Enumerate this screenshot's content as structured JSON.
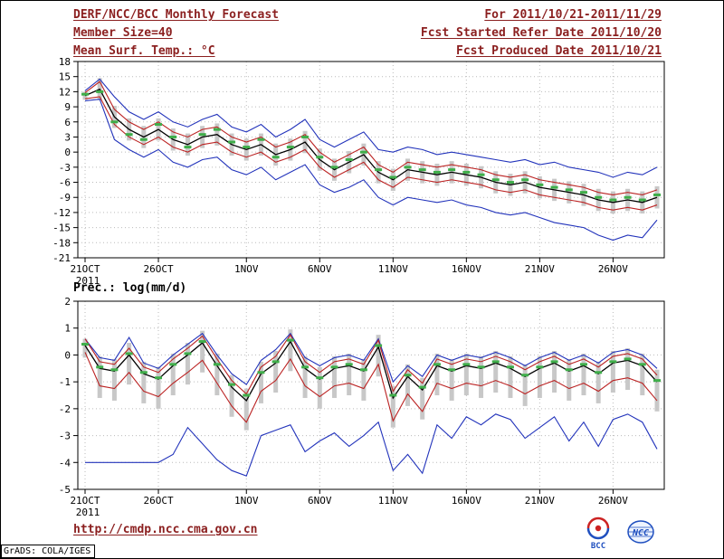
{
  "header": {
    "title": "DERF/NCC/BCC Monthly Forecast",
    "member_size": "Member Size=40",
    "for_range": "For 2011/10/21-2011/11/29",
    "refer_date": "Fcst Started Refer Date 2011/10/20",
    "produced_date": "Fcst Produced Date 2011/10/21"
  },
  "footer": {
    "url": "http://cmdp.ncc.cma.gov.cn",
    "grads_credit": "GrADS: COLA/IGES",
    "logos": [
      {
        "name": "bcc",
        "label": "BCC"
      },
      {
        "name": "ncc",
        "label": "NCC"
      }
    ]
  },
  "colors": {
    "maroon": "#8b1f1f",
    "blue": "#2233bb",
    "red": "#bb2222",
    "black": "#000000",
    "green": "#3fae4a",
    "gray": "#c8c8c8",
    "grid": "#bbbbbb",
    "logo_blue": "#1f4fbf",
    "logo_red": "#cc2222"
  },
  "chart_data": [
    {
      "type": "line",
      "title": "Mean Surf. Temp.: °C",
      "n": 40,
      "ylim": [
        -21,
        18
      ],
      "yticks": [
        18,
        15,
        12,
        9,
        6,
        3,
        0,
        -3,
        -6,
        -9,
        -12,
        -15,
        -18,
        -21
      ],
      "xticks": [
        {
          "i": 0,
          "label": "21OCT"
        },
        {
          "i": 5,
          "label": "26OCT"
        },
        {
          "i": 11,
          "label": "1NOV"
        },
        {
          "i": 16,
          "label": "6NOV"
        },
        {
          "i": 21,
          "label": "11NOV"
        },
        {
          "i": 26,
          "label": "16NOV"
        },
        {
          "i": 31,
          "label": "21NOV"
        },
        {
          "i": 36,
          "label": "26NOV"
        }
      ],
      "x_year_label": "2011",
      "grid": true,
      "bars": {
        "color": "gray",
        "hi": [
          12,
          14.7,
          9.2,
          6.7,
          5.2,
          6.7,
          4.7,
          3.7,
          5.2,
          5.7,
          3.7,
          2.7,
          3.7,
          1.7,
          2.7,
          4.2,
          0.7,
          -1.3,
          0.2,
          1.7,
          -1.8,
          -3.3,
          -1.3,
          -1.8,
          -2.3,
          -1.8,
          -2.3,
          -2.8,
          -3.8,
          -4.3,
          -3.8,
          -4.8,
          -5.3,
          -5.8,
          -6.3,
          -7.3,
          -7.8,
          -7.3,
          -7.8,
          -6.8
        ],
        "lo": [
          10.4,
          10.3,
          4.8,
          2.3,
          0.8,
          2.3,
          0.3,
          -0.7,
          0.8,
          1.3,
          -0.7,
          -1.7,
          -0.7,
          -2.7,
          -1.7,
          -0.2,
          -3.7,
          -5.7,
          -4.2,
          -2.7,
          -6.2,
          -7.7,
          -5.7,
          -6.2,
          -6.7,
          -6.2,
          -6.7,
          -7.2,
          -8.2,
          -8.7,
          -8.2,
          -9.2,
          -9.7,
          -10.2,
          -10.7,
          -11.7,
          -12.2,
          -11.7,
          -12.2,
          -11.2
        ]
      },
      "series": [
        {
          "name": "upper-envelope",
          "type": "line",
          "color": "blue",
          "values": [
            12.2,
            14.5,
            11,
            8,
            6.5,
            8,
            6,
            5,
            6.5,
            7.5,
            5,
            4,
            5.5,
            3,
            4.5,
            6.5,
            2.5,
            1,
            2.5,
            4,
            0.5,
            0,
            1,
            0.5,
            -0.5,
            0,
            -0.5,
            -1,
            -1.5,
            -2,
            -1.5,
            -2.5,
            -2,
            -3,
            -3.5,
            -4,
            -5,
            -4,
            -4.5,
            -3
          ]
        },
        {
          "name": "lower-envelope",
          "type": "line",
          "color": "blue",
          "values": [
            10.2,
            10.5,
            2.5,
            0.5,
            -1,
            0.5,
            -2,
            -3,
            -1.5,
            -1,
            -3.5,
            -4.5,
            -3,
            -5.5,
            -4,
            -2.5,
            -6.5,
            -8,
            -7,
            -5.5,
            -9,
            -10.5,
            -9,
            -9.5,
            -10,
            -9.5,
            -10.5,
            -11,
            -12,
            -12.5,
            -12,
            -13,
            -14,
            -14.5,
            -15,
            -16.5,
            -17.5,
            -16.5,
            -17,
            -13.5
          ]
        },
        {
          "name": "upper-band",
          "type": "line",
          "color": "red",
          "values": [
            11.8,
            14,
            8.5,
            6,
            4.5,
            6,
            4,
            3,
            4.5,
            5,
            3,
            2,
            3,
            1,
            2,
            3.5,
            0,
            -2,
            -0.5,
            1,
            -2.5,
            -4,
            -2,
            -2.5,
            -3,
            -2.5,
            -3,
            -3.5,
            -4.5,
            -5,
            -4.5,
            -5.5,
            -6,
            -6.5,
            -7,
            -8,
            -8.5,
            -8,
            -8.5,
            -7.5
          ]
        },
        {
          "name": "lower-band",
          "type": "line",
          "color": "red",
          "values": [
            10.6,
            11,
            5.5,
            3,
            1.5,
            3,
            1,
            0,
            1.5,
            2,
            0,
            -1,
            0,
            -2,
            -1,
            0.5,
            -3,
            -5,
            -3.5,
            -2,
            -5.5,
            -7,
            -5,
            -5.5,
            -6,
            -5.5,
            -6,
            -6.5,
            -7.5,
            -8,
            -7.5,
            -8.5,
            -9,
            -9.5,
            -10,
            -11,
            -11.5,
            -11,
            -11.5,
            -10.5
          ]
        },
        {
          "name": "ensemble-mean",
          "type": "line",
          "color": "black",
          "values": [
            11.2,
            12.5,
            7,
            4.5,
            3,
            4.5,
            2.5,
            1.5,
            3,
            3.5,
            1.5,
            0.5,
            1.5,
            -0.5,
            0.5,
            2,
            -1.5,
            -3.5,
            -2,
            -0.5,
            -4,
            -5.5,
            -3.5,
            -4,
            -4.5,
            -4,
            -4.5,
            -5,
            -6,
            -6.5,
            -6,
            -7,
            -7.5,
            -8,
            -8.5,
            -9.5,
            -10,
            -9.5,
            -10,
            -9
          ]
        },
        {
          "name": "daily-median-marks",
          "type": "dashes",
          "color": "green",
          "values": [
            11.5,
            12,
            6,
            3.5,
            2.5,
            5.5,
            3,
            1,
            3.5,
            4.5,
            2,
            1,
            2.5,
            -1,
            1,
            3,
            -1,
            -3,
            -1.5,
            0,
            -3.5,
            -5,
            -3,
            -3.5,
            -4,
            -3.5,
            -4,
            -4.5,
            -5.5,
            -6,
            -5.5,
            -6.5,
            -7,
            -7.5,
            -8,
            -9,
            -9.5,
            -9,
            -9.5,
            -8.5
          ]
        }
      ]
    },
    {
      "type": "line",
      "title": "Prec.: log(mm/d)",
      "n": 40,
      "ylim": [
        -5,
        2
      ],
      "yticks": [
        2,
        1,
        0,
        -1,
        -2,
        -3,
        -4,
        -5
      ],
      "xticks": [
        {
          "i": 0,
          "label": "21OCT"
        },
        {
          "i": 5,
          "label": "26OCT"
        },
        {
          "i": 11,
          "label": "1NOV"
        },
        {
          "i": 16,
          "label": "6NOV"
        },
        {
          "i": 21,
          "label": "11NOV"
        },
        {
          "i": 26,
          "label": "16NOV"
        },
        {
          "i": 31,
          "label": "21NOV"
        },
        {
          "i": 36,
          "label": "26NOV"
        }
      ],
      "x_year_label": "2011",
      "grid": true,
      "bars": {
        "color": "gray",
        "hi": [
          0.6,
          -0.05,
          -0.15,
          0.45,
          -0.25,
          -0.45,
          0.05,
          0.45,
          0.9,
          0.05,
          -0.75,
          -1.25,
          -0.25,
          0.15,
          0.95,
          -0.05,
          -0.45,
          -0.05,
          0.05,
          -0.15,
          0.75,
          -1.15,
          -0.35,
          -0.85,
          0.05,
          -0.15,
          0.05,
          -0.05,
          0.15,
          -0.05,
          -0.35,
          -0.05,
          0.15,
          -0.15,
          0.05,
          -0.25,
          0.15,
          0.25,
          0.05,
          -0.55
        ],
        "lo": [
          -0.1,
          -1.6,
          -1.7,
          -1.1,
          -1.8,
          -2,
          -1.5,
          -1.1,
          -0.65,
          -1.5,
          -2.3,
          -2.8,
          -1.8,
          -1.4,
          -0.6,
          -1.6,
          -2,
          -1.6,
          -1.5,
          -1.7,
          -0.8,
          -2.7,
          -1.9,
          -2.4,
          -1.5,
          -1.7,
          -1.5,
          -1.6,
          -1.4,
          -1.6,
          -1.9,
          -1.6,
          -1.4,
          -1.7,
          -1.5,
          -1.8,
          -1.4,
          -1.3,
          -1.5,
          -2.1
        ]
      },
      "series": [
        {
          "name": "upper-envelope",
          "type": "line",
          "color": "blue",
          "values": [
            0.6,
            -0.1,
            -0.2,
            0.65,
            -0.3,
            -0.5,
            0,
            0.4,
            0.8,
            0,
            -0.7,
            -1.1,
            -0.2,
            0.2,
            0.8,
            -0.1,
            -0.4,
            -0.1,
            0,
            -0.2,
            0.6,
            -1,
            -0.4,
            -0.8,
            0,
            -0.2,
            0,
            -0.1,
            0.1,
            -0.1,
            -0.4,
            -0.1,
            0.1,
            -0.2,
            0,
            -0.3,
            0.1,
            0.2,
            0,
            -0.5
          ]
        },
        {
          "name": "lower-envelope",
          "type": "line",
          "color": "blue",
          "values": [
            -4,
            -4,
            -4,
            -4,
            -4,
            -4,
            -3.7,
            -2.7,
            -3.3,
            -3.9,
            -4.3,
            -4.5,
            -3,
            -2.8,
            -2.6,
            -3.6,
            -3.2,
            -2.9,
            -3.4,
            -3,
            -2.5,
            -4.3,
            -3.7,
            -4.4,
            -2.6,
            -3.1,
            -2.3,
            -2.6,
            -2.2,
            -2.4,
            -3.1,
            -2.7,
            -2.3,
            -3.2,
            -2.5,
            -3.4,
            -2.4,
            -2.2,
            -2.5,
            -3.5
          ]
        },
        {
          "name": "upper-band",
          "type": "line",
          "color": "red",
          "values": [
            0.6,
            -0.25,
            -0.35,
            0.25,
            -0.45,
            -0.65,
            -0.15,
            0.25,
            0.7,
            -0.15,
            -0.95,
            -1.45,
            -0.45,
            -0.05,
            0.75,
            -0.25,
            -0.65,
            -0.25,
            -0.15,
            -0.35,
            0.55,
            -1.35,
            -0.55,
            -1.05,
            -0.15,
            -0.35,
            -0.15,
            -0.25,
            -0.05,
            -0.25,
            -0.55,
            -0.25,
            -0.05,
            -0.35,
            -0.15,
            -0.45,
            -0.05,
            0.05,
            -0.15,
            -0.75
          ]
        },
        {
          "name": "lower-band",
          "type": "line",
          "color": "red",
          "values": [
            0.1,
            -1.15,
            -1.25,
            -0.65,
            -1.35,
            -1.55,
            -1.05,
            -0.65,
            -0.2,
            -1.05,
            -1.9,
            -2.5,
            -1.35,
            -0.95,
            -0.15,
            -1.15,
            -1.55,
            -1.15,
            -1.05,
            -1.25,
            -0.35,
            -2.45,
            -1.45,
            -2.1,
            -1.05,
            -1.25,
            -1.05,
            -1.15,
            -0.95,
            -1.15,
            -1.45,
            -1.15,
            -0.95,
            -1.25,
            -1.05,
            -1.35,
            -0.95,
            -0.85,
            -1.05,
            -1.7
          ]
        },
        {
          "name": "ensemble-mean",
          "type": "line",
          "color": "black",
          "values": [
            0.35,
            -0.5,
            -0.6,
            0,
            -0.7,
            -0.9,
            -0.4,
            0,
            0.45,
            -0.4,
            -1.2,
            -1.7,
            -0.7,
            -0.3,
            0.5,
            -0.5,
            -0.9,
            -0.5,
            -0.4,
            -0.6,
            0.3,
            -1.6,
            -0.8,
            -1.3,
            -0.4,
            -0.6,
            -0.4,
            -0.5,
            -0.3,
            -0.5,
            -0.8,
            -0.5,
            -0.3,
            -0.6,
            -0.4,
            -0.7,
            -0.3,
            -0.2,
            -0.4,
            -1
          ]
        },
        {
          "name": "daily-median-marks",
          "type": "dashes",
          "color": "green",
          "values": [
            0.4,
            -0.45,
            -0.55,
            0.05,
            -0.65,
            -0.85,
            -0.35,
            0.05,
            0.5,
            -0.35,
            -1.1,
            -1.5,
            -0.65,
            -0.25,
            0.55,
            -0.45,
            -0.85,
            -0.45,
            -0.35,
            -0.55,
            0.35,
            -1.5,
            -0.75,
            -1.2,
            -0.35,
            -0.55,
            -0.35,
            -0.45,
            -0.25,
            -0.45,
            -0.75,
            -0.45,
            -0.25,
            -0.55,
            -0.35,
            -0.65,
            -0.25,
            -0.15,
            -0.35,
            -0.95
          ]
        }
      ]
    }
  ]
}
